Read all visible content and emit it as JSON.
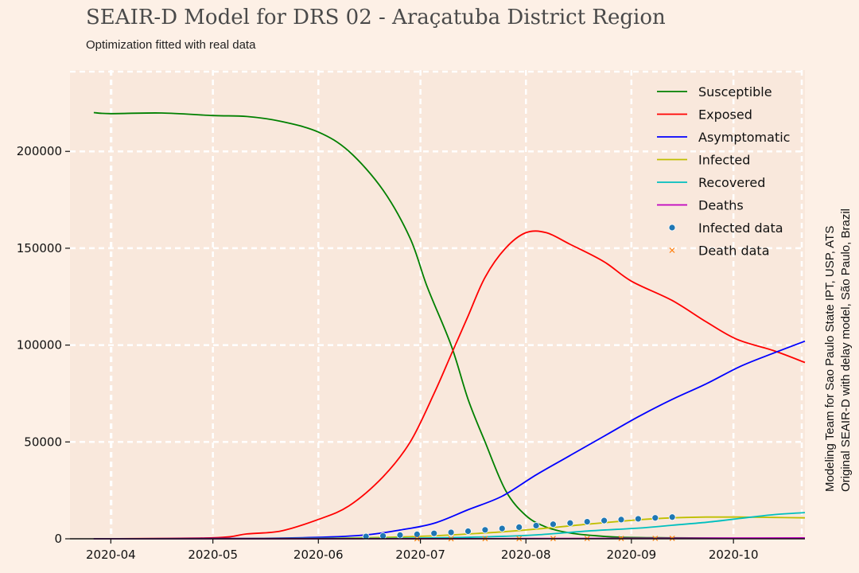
{
  "chart_data": {
    "type": "line",
    "title": "SEAIR-D Model for DRS 02 - Araçatuba District Region",
    "subtitle": "Optimization fitted with real data",
    "side_note": [
      "Modeling Team for Sao Paulo State IPT, USP, ATS",
      "Original SEAIR-D with delay model, São Paulo, Brazil"
    ],
    "x_ticks": [
      "2020-04",
      "2020-05",
      "2020-06",
      "2020-07",
      "2020-08",
      "2020-09",
      "2020-10"
    ],
    "x_tick_days": [
      0,
      30,
      61,
      91,
      122,
      153,
      183
    ],
    "xlim_days": [
      -12,
      204
    ],
    "y_ticks": [
      "0",
      "50000",
      "100000",
      "150000",
      "200000"
    ],
    "y_tick_values": [
      0,
      50000,
      100000,
      150000,
      200000
    ],
    "ylim": [
      0,
      242000
    ],
    "grid": true,
    "legend_position": "top-right",
    "colors": {
      "background": "#fdf0e6",
      "plot_area": "#f9e8dc",
      "grid": "#ffffff",
      "susceptible": "#008000",
      "exposed": "#ff0000",
      "asymptomatic": "#0000ff",
      "infected": "#bfbf00",
      "recovered": "#00bfbf",
      "deaths": "#bf00bf",
      "infected_data": "#1f77b4",
      "death_data": "#ff7f0e"
    },
    "series": [
      {
        "name": "Susceptible",
        "key": "susceptible",
        "kind": "line",
        "x": [
          -5,
          0,
          15,
          30,
          40,
          50,
          61,
          70,
          80,
          88,
          93,
          100,
          105,
          110,
          116,
          122,
          128,
          135,
          143,
          150,
          165,
          184,
          204
        ],
        "y": [
          220000,
          219500,
          219800,
          218500,
          218000,
          215500,
          210000,
          200000,
          180000,
          155000,
          130000,
          100000,
          72000,
          50000,
          25000,
          12000,
          6000,
          3000,
          1500,
          800,
          500,
          300,
          200
        ]
      },
      {
        "name": "Exposed",
        "key": "exposed",
        "kind": "line",
        "x": [
          -5,
          30,
          40,
          50,
          61,
          70,
          80,
          88,
          95,
          100,
          105,
          110,
          116,
          122,
          128,
          135,
          145,
          153,
          165,
          175,
          184,
          195,
          204
        ],
        "y": [
          0,
          500,
          2500,
          4000,
          10000,
          17000,
          32000,
          50000,
          75000,
          95000,
          115000,
          135000,
          150000,
          158000,
          158000,
          152000,
          143000,
          133000,
          123000,
          112000,
          103000,
          97000,
          91000
        ]
      },
      {
        "name": "Asymptomatic",
        "key": "asymptomatic",
        "kind": "line",
        "x": [
          -5,
          40,
          60,
          75,
          85,
          95,
          105,
          115,
          125,
          135,
          145,
          155,
          165,
          175,
          185,
          195,
          204
        ],
        "y": [
          0,
          200,
          700,
          2000,
          4500,
          8000,
          15000,
          22000,
          33000,
          43000,
          53000,
          63000,
          72000,
          80000,
          89000,
          96000,
          102000
        ]
      },
      {
        "name": "Infected",
        "key": "infected",
        "kind": "line",
        "x": [
          -5,
          60,
          90,
          110,
          125,
          140,
          155,
          165,
          175,
          185,
          195,
          204
        ],
        "y": [
          0,
          200,
          1200,
          3000,
          5000,
          7500,
          9800,
          10800,
          11200,
          11200,
          11000,
          10800
        ]
      },
      {
        "name": "Recovered",
        "key": "recovered",
        "kind": "line",
        "x": [
          -5,
          80,
          110,
          125,
          140,
          155,
          165,
          175,
          185,
          195,
          204
        ],
        "y": [
          0,
          200,
          1000,
          2000,
          4000,
          5500,
          7000,
          8500,
          10500,
          12500,
          13500
        ]
      },
      {
        "name": "Deaths",
        "key": "deaths",
        "kind": "line",
        "x": [
          -5,
          100,
          130,
          160,
          190,
          204
        ],
        "y": [
          0,
          50,
          150,
          250,
          400,
          450
        ]
      },
      {
        "name": "Infected data",
        "key": "infected_data",
        "kind": "points",
        "x": [
          75,
          80,
          85,
          90,
          95,
          100,
          105,
          110,
          115,
          120,
          125,
          130,
          135,
          140,
          145,
          150,
          155,
          160,
          165
        ],
        "y": [
          1200,
          1500,
          1900,
          2300,
          2800,
          3300,
          3900,
          4600,
          5300,
          6000,
          6800,
          7500,
          8100,
          8800,
          9400,
          9900,
          10300,
          10800,
          11200
        ]
      },
      {
        "name": "Death data",
        "key": "death_data",
        "kind": "crosses",
        "x": [
          90,
          100,
          110,
          120,
          130,
          140,
          150,
          160,
          165
        ],
        "y": [
          20,
          40,
          60,
          90,
          120,
          150,
          180,
          210,
          230
        ]
      }
    ]
  }
}
